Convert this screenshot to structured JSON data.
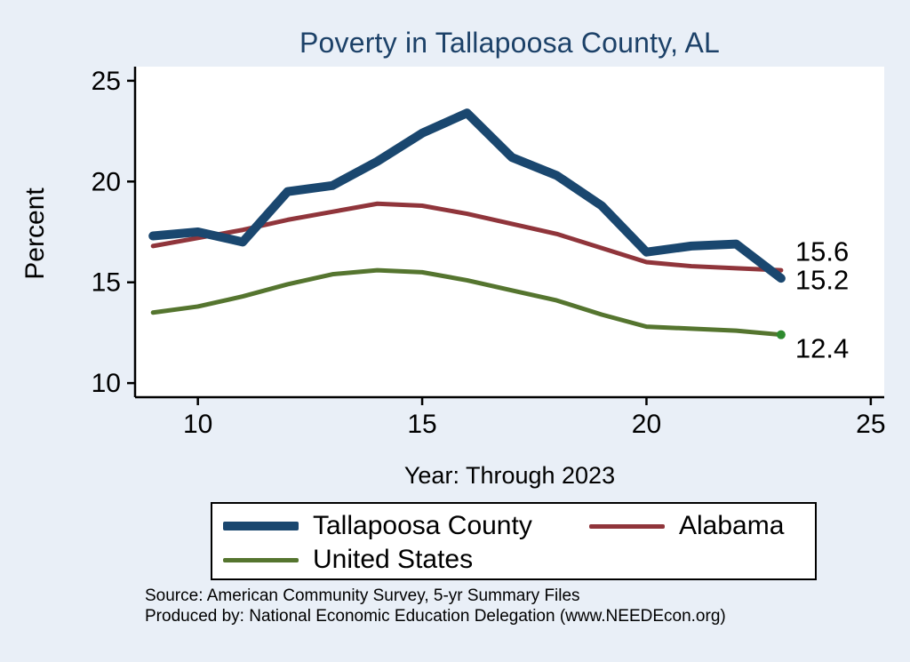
{
  "title": "Poverty in Tallapoosa County, AL",
  "axes": {
    "ylabel": "Percent",
    "xlabel": "Year: Through 2023"
  },
  "legend": {
    "items": [
      {
        "label": "Tallapoosa County",
        "color": "#1a476f",
        "thickness": 10
      },
      {
        "label": "Alabama",
        "color": "#90353b",
        "thickness": 5
      },
      {
        "label": "United States",
        "color": "#55752f",
        "thickness": 5
      }
    ]
  },
  "footer": {
    "line1": "Source: American Community Survey, 5-yr Summary Files",
    "line2": "Produced by: National Economic Education Delegation (www.NEEDEcon.org)"
  },
  "colors": {
    "background": "#e9eff7",
    "plot_background": "#ffffff",
    "title": "#1c4168",
    "axis": "#000000",
    "end_marker": "#2e8b2e"
  },
  "chart_data": {
    "type": "line",
    "title": "Poverty in Tallapoosa County, AL",
    "xlabel": "Year: Through 2023",
    "ylabel": "Percent",
    "x": [
      9,
      10,
      11,
      12,
      13,
      14,
      15,
      16,
      17,
      18,
      19,
      20,
      21,
      22,
      23
    ],
    "series": [
      {
        "name": "Tallapoosa County",
        "color": "#1a476f",
        "width": 10,
        "values": [
          17.3,
          17.5,
          17.0,
          19.5,
          19.8,
          21.0,
          22.4,
          23.4,
          21.2,
          20.3,
          18.8,
          16.5,
          16.8,
          16.9,
          15.2
        ]
      },
      {
        "name": "Alabama",
        "color": "#90353b",
        "width": 5,
        "values": [
          16.8,
          17.2,
          17.6,
          18.1,
          18.5,
          18.9,
          18.8,
          18.4,
          17.9,
          17.4,
          16.7,
          16.0,
          15.8,
          15.7,
          15.6
        ]
      },
      {
        "name": "United States",
        "color": "#55752f",
        "width": 5,
        "values": [
          13.5,
          13.8,
          14.3,
          14.9,
          15.4,
          15.6,
          15.5,
          15.1,
          14.6,
          14.1,
          13.4,
          12.8,
          12.7,
          12.6,
          12.4
        ]
      }
    ],
    "draw_order": [
      1,
      2,
      0
    ],
    "end_labels": [
      {
        "text": "15.6",
        "at": 16.5
      },
      {
        "text": "15.2",
        "at": 15.1
      },
      {
        "text": "12.4",
        "at": 11.7
      }
    ],
    "xlim": [
      8.6,
      25.3
    ],
    "ylim": [
      9.3,
      25.7
    ],
    "xticks": [
      10,
      15,
      20,
      25
    ],
    "yticks": [
      10,
      15,
      20,
      25
    ],
    "grid": false,
    "legend_position": "bottom"
  }
}
